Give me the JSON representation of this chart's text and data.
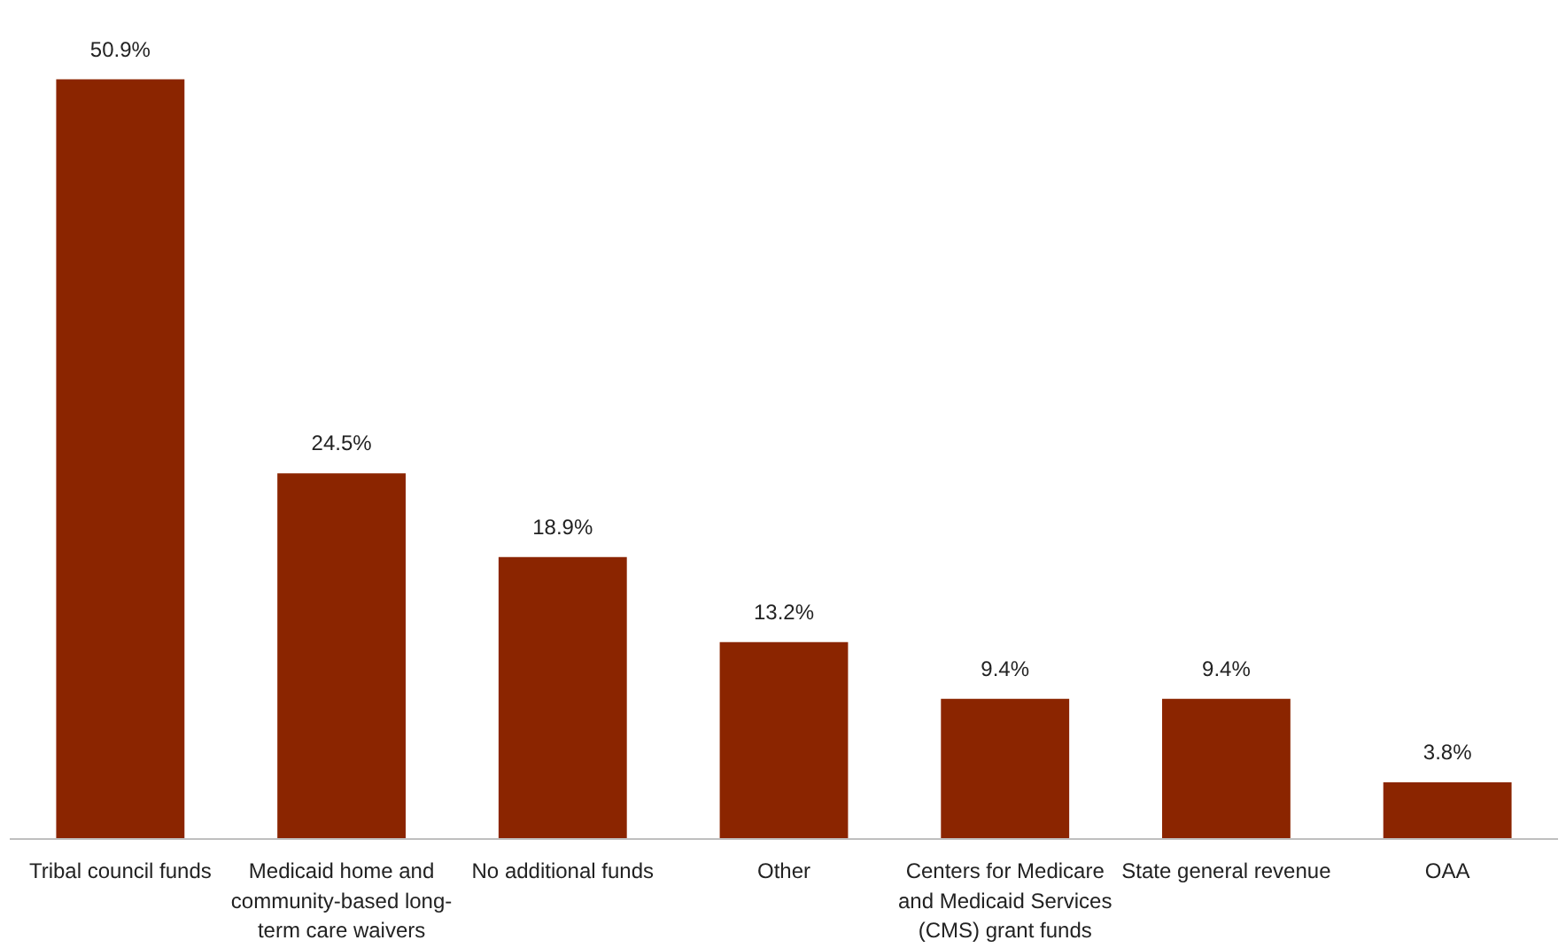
{
  "chart_data": {
    "type": "bar",
    "categories": [
      "Tribal council funds",
      "Medicaid home and community-based long-term care waivers",
      "No additional funds",
      "Other",
      "Centers for Medicare and Medicaid Services (CMS) grant funds",
      "State general revenue",
      "OAA"
    ],
    "values": [
      50.9,
      24.5,
      18.9,
      13.2,
      9.4,
      9.4,
      3.8
    ],
    "value_labels": [
      "50.9%",
      "24.5%",
      "18.9%",
      "13.2%",
      "9.4%",
      "9.4%",
      "3.8%"
    ],
    "color": "#8b2500",
    "grid": false
  }
}
